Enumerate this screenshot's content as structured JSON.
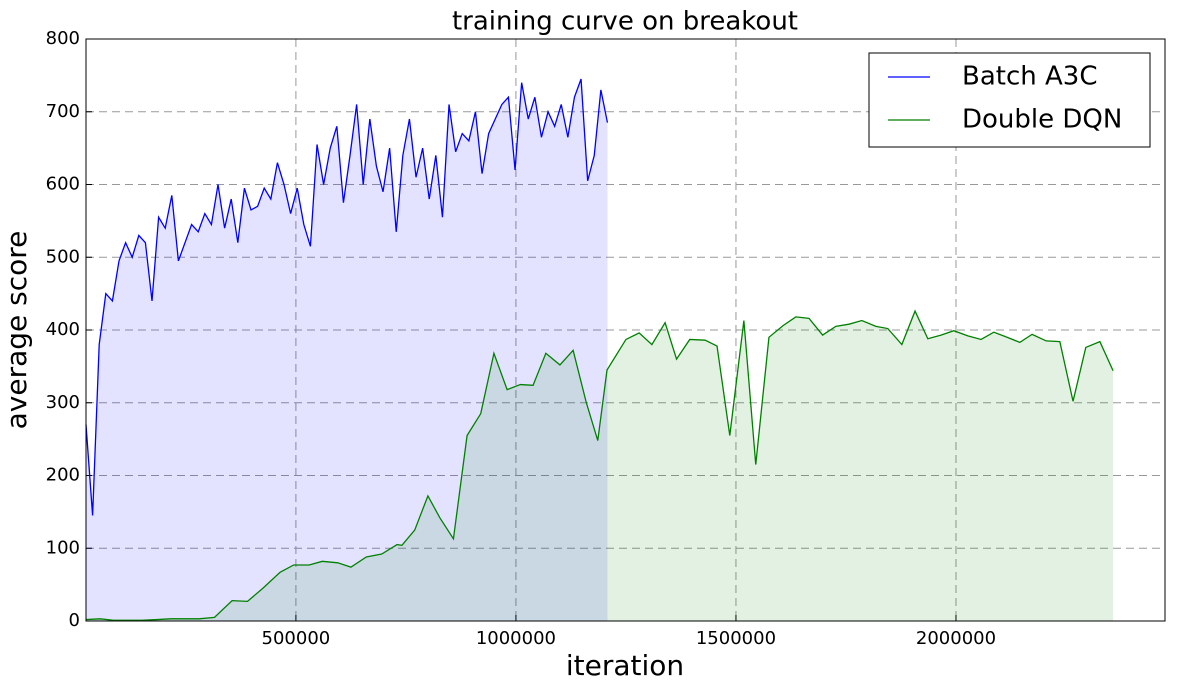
{
  "chart_data": {
    "type": "line",
    "title": "training curve on breakout",
    "x_label": "iteration",
    "y_label": "average score",
    "xlim": [
      23000,
      2475000
    ],
    "ylim": [
      0,
      800
    ],
    "xticks": [
      500000,
      1000000,
      1500000,
      2000000
    ],
    "yticks": [
      0,
      100,
      200,
      300,
      400,
      500,
      600,
      700,
      800
    ],
    "grid": true,
    "legend": "upper right",
    "fill": true,
    "series": [
      {
        "name": "Batch A3C",
        "color": "#0000ff",
        "x": [
          23000,
          38000,
          53000,
          68000,
          83000,
          98000,
          113000,
          128000,
          143000,
          158000,
          173000,
          188000,
          203000,
          218000,
          233000,
          248000,
          263000,
          278000,
          293000,
          308000,
          323000,
          338000,
          353000,
          368000,
          383000,
          398000,
          413000,
          428000,
          443000,
          458000,
          473000,
          488000,
          503000,
          518000,
          533000,
          548000,
          563000,
          578000,
          593000,
          608000,
          623000,
          638000,
          653000,
          668000,
          683000,
          698000,
          713000,
          728000,
          743000,
          758000,
          773000,
          788000,
          803000,
          818000,
          833000,
          848000,
          863000,
          878000,
          893000,
          908000,
          923000,
          938000,
          953000,
          968000,
          983000,
          998000,
          1013000,
          1028000,
          1043000,
          1058000,
          1073000,
          1088000,
          1103000,
          1118000,
          1133000,
          1148000,
          1163000,
          1178000,
          1193000,
          1208000
        ],
        "values": [
          270,
          145,
          380,
          450,
          440,
          495,
          520,
          500,
          530,
          520,
          440,
          555,
          540,
          585,
          495,
          520,
          545,
          535,
          560,
          545,
          600,
          540,
          580,
          520,
          595,
          565,
          570,
          595,
          580,
          630,
          600,
          560,
          595,
          545,
          515,
          655,
          600,
          650,
          680,
          575,
          640,
          710,
          600,
          690,
          625,
          590,
          650,
          535,
          640,
          690,
          610,
          650,
          580,
          640,
          555,
          710,
          645,
          670,
          660,
          700,
          615,
          670,
          690,
          710,
          720,
          620,
          740,
          690,
          720,
          665,
          700,
          680,
          710,
          665,
          720,
          745,
          605,
          640,
          730,
          685
        ]
      },
      {
        "name": "Double DQN",
        "color": "#008000",
        "x": [
          23000,
          55000,
          85000,
          120000,
          150000,
          185000,
          215000,
          250000,
          280000,
          315000,
          355000,
          390000,
          425000,
          464000,
          495000,
          530000,
          560000,
          595000,
          625000,
          660000,
          695000,
          730000,
          741000,
          770000,
          800000,
          827000,
          858000,
          889000,
          920000,
          950000,
          980000,
          1010000,
          1039000,
          1068000,
          1100000,
          1130000,
          1160000,
          1186000,
          1207000,
          1250000,
          1280000,
          1309000,
          1339000,
          1365000,
          1395000,
          1430000,
          1457000,
          1486000,
          1518000,
          1545000,
          1575000,
          1607000,
          1636000,
          1666000,
          1697000,
          1727000,
          1757000,
          1786000,
          1818000,
          1845000,
          1877000,
          1907000,
          1936000,
          1966000,
          1995000,
          2027000,
          2057000,
          2086000,
          2116000,
          2145000,
          2173000,
          2205000,
          2236000,
          2266000,
          2295000,
          2327000,
          2357000
        ],
        "values": [
          2,
          3,
          1,
          1,
          1,
          2,
          3,
          3,
          3,
          5,
          28,
          27,
          45,
          67,
          77,
          77,
          82,
          80,
          74,
          88,
          92,
          105,
          104,
          125,
          172,
          142,
          113,
          255,
          285,
          368,
          318,
          325,
          324,
          368,
          352,
          372,
          300,
          248,
          345,
          387,
          396,
          380,
          410,
          360,
          387,
          386,
          378,
          255,
          413,
          215,
          390,
          406,
          418,
          416,
          393,
          405,
          408,
          413,
          405,
          402,
          380,
          426,
          388,
          393,
          399,
          392,
          387,
          397,
          390,
          383,
          394,
          385,
          384,
          302,
          376,
          384,
          344
        ]
      }
    ]
  }
}
